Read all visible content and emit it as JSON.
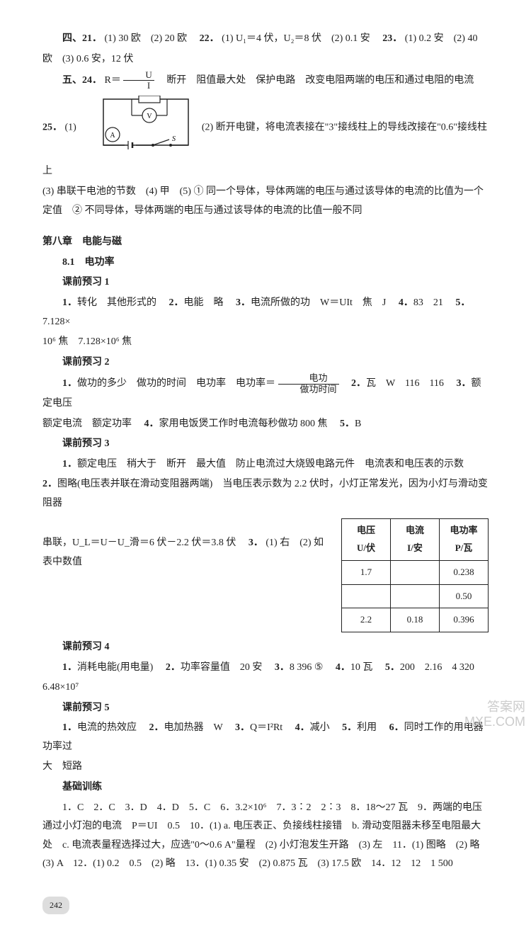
{
  "sec4": {
    "line1_a": "四、21．",
    "line1_b": "(1) 30 欧　(2) 20 欧　",
    "q22a": "22．",
    "q22b": "(1) U₁＝4 伏，U₂＝8 伏　(2) 0.1 安　",
    "q23a": "23．",
    "q23b": "(1) 0.2 安　(2) 40",
    "line2": "欧　(3) 0.6 安，12 伏"
  },
  "sec5": {
    "head": "五、24．",
    "eq_left": "R＝",
    "frac_num": "U",
    "frac_den": "I",
    "tail1": "　断开　阻值最大处　保护电路　改变电阻两端的电压和通过电阻的电流",
    "q25a": "25．",
    "q25b": "(1)",
    "circuit_labels": {
      "R": "R",
      "V": "V",
      "A": "A",
      "S": "S"
    },
    "part2": "(2) 断开电键，将电流表接在\"3\"接线柱上的导线改接在\"0.6\"接线柱上",
    "part3": "(3) 串联干电池的节数　(4) 甲　(5) ① 同一个导体，导体两端的电压与通过该导体的电流的比值为一个定值　② 不同导体，导体两端的电压与通过该导体的电流的比值一般不同"
  },
  "ch8": {
    "title": "第八章　电能与磁",
    "s81": "8.1　电功率",
    "p1": {
      "head": "课前预习 1",
      "l1a": "1．",
      "l1b": "转化　其他形式的　",
      "l2a": "2．",
      "l2b": "电能　略　",
      "l3a": "3．",
      "l3b": "电流所做的功　W＝UIt　焦　J　",
      "l4a": "4．",
      "l4b": "83　21　",
      "l5a": "5．",
      "l5b": "7.128×",
      "l6": "10⁶ 焦　7.128×10⁶ 焦"
    },
    "p2": {
      "head": "课前预习 2",
      "l1a": "1．",
      "l1b": "做功的多少　做功的时间　电功率　电功率＝",
      "frac_num": "电功",
      "frac_den": "做功时间",
      "l2a": "　2．",
      "l2b": "瓦　W　116　116　",
      "l3a": "3．",
      "l3b": "额定电压",
      "l4": "额定电流　额定功率　",
      "l4a": "4．",
      "l4b": "家用电饭煲工作时电流每秒做功 800 焦　",
      "l5a": "5．",
      "l5b": "B"
    },
    "p3": {
      "head": "课前预习 3",
      "l1a": "1．",
      "l1b": "额定电压　稍大于　断开　最大值　防止电流过大烧毁电路元件　电流表和电压表的示数",
      "l2a": "2．",
      "l2b": "图略(电压表并联在滑动变阻器两端)　当电压表示数为 2.2 伏时，小灯正常发光，因为小灯与滑动变阻器",
      "l3": "串联，U_L＝U－U_滑＝6 伏－2.2 伏＝3.8 伏　",
      "l3a": "3．",
      "l3b": "(1) 右　(2) 如表中数值",
      "table": {
        "head": [
          "电压\nU/伏",
          "电流\nI/安",
          "电功率\nP/瓦"
        ],
        "rows": [
          [
            "1.7",
            "",
            "0.238"
          ],
          [
            "",
            "",
            "0.50"
          ],
          [
            "2.2",
            "0.18",
            "0.396"
          ]
        ]
      }
    },
    "p4": {
      "head": "课前预习 4",
      "l1a": "1．",
      "l1b": "消耗电能(用电量)　",
      "l2a": "2．",
      "l2b": "功率容量值　20 安　",
      "l3a": "3．",
      "l3b": "8 396 ⑤　",
      "l4a": "4．",
      "l4b": "10 瓦　",
      "l5a": "5．",
      "l5b": "200　2.16　4 320",
      "l6": "6.48×10⁷"
    },
    "p5": {
      "head": "课前预习 5",
      "l1a": "1．",
      "l1b": "电流的热效应　",
      "l2a": "2．",
      "l2b": "电加热器　W　",
      "l3a": "3．",
      "l3b": "Q＝I²Rt　",
      "l4a": "4．",
      "l4b": "减小　",
      "l5a": "5．",
      "l5b": "利用　",
      "l6a": "6．",
      "l6b": "同时工作的用电器功率过",
      "l7": "大　短路"
    },
    "base": {
      "head": "基础训练",
      "l1": "1．C　2．C　3．D　4．D　5．C　6．3.2×10⁶　7．3∶2　2∶3　8．18～27 瓦　9．两端的电压　通过小灯泡的电流　P＝UI　0.5　10．(1) a. 电压表正、负接线柱接错　b. 滑动变阻器未移至电阻最大处　c. 电流表量程选择过大，应选\"0～0.6 A\"量程　(2) 小灯泡发生开路　(3) 左　11．(1) 图略　(2) 略　(3) A　12．(1) 0.2　0.5　(2) 略　13．(1) 0.35 安　(2) 0.875 瓦　(3) 17.5 欧　14．12　12　1 500"
    }
  },
  "page": "242",
  "watermark": {
    "l1": "答案网",
    "l2": "MXE.COM"
  }
}
